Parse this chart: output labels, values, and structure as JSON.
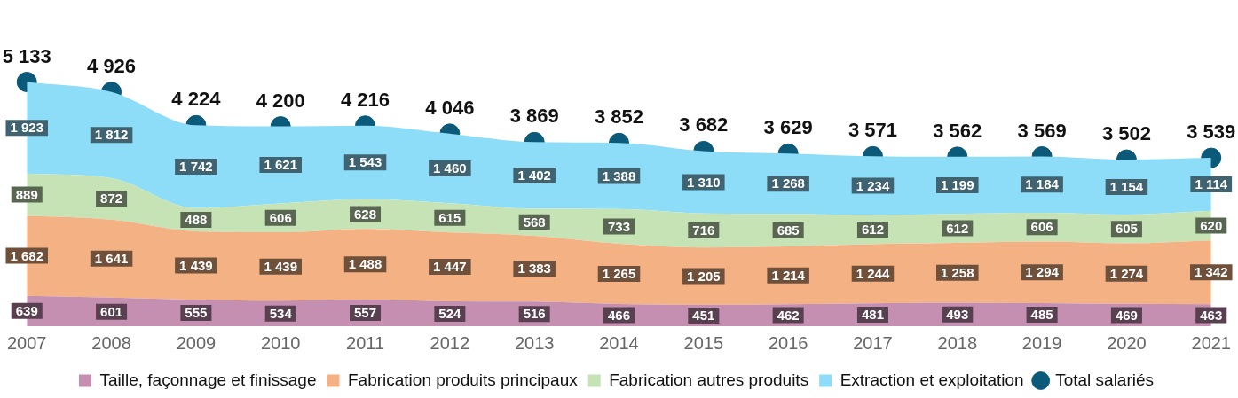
{
  "chart_data": {
    "type": "area",
    "stacked": true,
    "data_labels": true,
    "grid": false,
    "tick_labels": "x",
    "legend": "bottom",
    "categories": [
      "2007",
      "2008",
      "2009",
      "2010",
      "2011",
      "2012",
      "2013",
      "2014",
      "2015",
      "2016",
      "2017",
      "2018",
      "2019",
      "2020",
      "2021"
    ],
    "series": [
      {
        "name": "Taille, façonnage et finissage",
        "color": "#c48fb1",
        "values": [
          639,
          601,
          555,
          534,
          557,
          524,
          516,
          466,
          451,
          462,
          481,
          493,
          485,
          469,
          463
        ]
      },
      {
        "name": "Fabrication produits principaux",
        "color": "#f4b183",
        "values": [
          1682,
          1641,
          1439,
          1439,
          1488,
          1447,
          1383,
          1265,
          1205,
          1214,
          1244,
          1258,
          1294,
          1274,
          1342
        ]
      },
      {
        "name": "Fabrication autres produits",
        "color": "#c6e3b5",
        "values": [
          889,
          872,
          488,
          606,
          628,
          615,
          568,
          733,
          716,
          685,
          612,
          612,
          606,
          605,
          620
        ]
      },
      {
        "name": "Extraction et exploitation",
        "color": "#8ddcf8",
        "values": [
          1923,
          1812,
          1742,
          1621,
          1543,
          1460,
          1402,
          1388,
          1310,
          1268,
          1234,
          1199,
          1184,
          1154,
          1114
        ]
      },
      {
        "name": "Total salariés",
        "type": "scatter",
        "marker": "circle",
        "color": "#0b5a7a",
        "values": [
          5133,
          4926,
          4224,
          4200,
          4216,
          4046,
          3869,
          3852,
          3682,
          3629,
          3571,
          3562,
          3569,
          3502,
          3539
        ]
      }
    ]
  }
}
